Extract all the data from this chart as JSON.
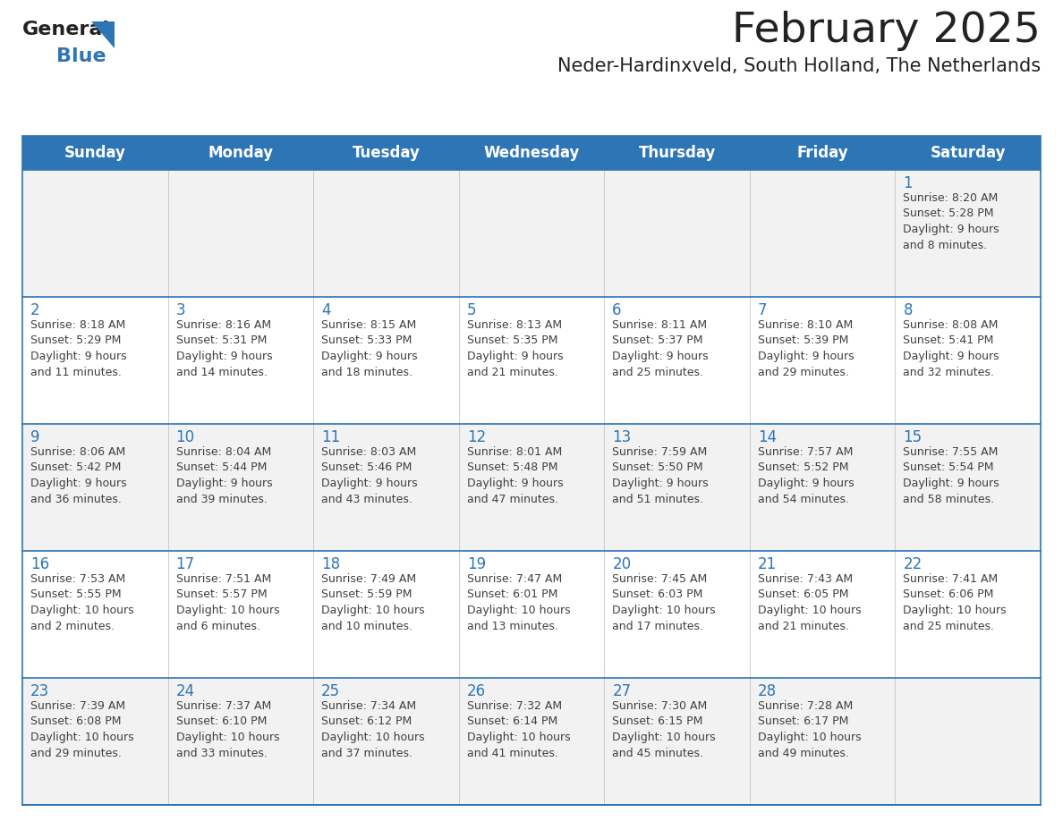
{
  "title": "February 2025",
  "subtitle": "Neder-Hardinxveld, South Holland, The Netherlands",
  "header_color": "#2E75B6",
  "header_text_color": "#FFFFFF",
  "cell_bg_even": "#F2F2F2",
  "cell_bg_odd": "#FFFFFF",
  "cell_border_color": "#2E75B6",
  "day_number_color": "#2E75B6",
  "info_text_color": "#404040",
  "background_color": "#FFFFFF",
  "days_of_week": [
    "Sunday",
    "Monday",
    "Tuesday",
    "Wednesday",
    "Thursday",
    "Friday",
    "Saturday"
  ],
  "weeks": [
    [
      {
        "day": null,
        "info": ""
      },
      {
        "day": null,
        "info": ""
      },
      {
        "day": null,
        "info": ""
      },
      {
        "day": null,
        "info": ""
      },
      {
        "day": null,
        "info": ""
      },
      {
        "day": null,
        "info": ""
      },
      {
        "day": "1",
        "info": "Sunrise: 8:20 AM\nSunset: 5:28 PM\nDaylight: 9 hours\nand 8 minutes."
      }
    ],
    [
      {
        "day": "2",
        "info": "Sunrise: 8:18 AM\nSunset: 5:29 PM\nDaylight: 9 hours\nand 11 minutes."
      },
      {
        "day": "3",
        "info": "Sunrise: 8:16 AM\nSunset: 5:31 PM\nDaylight: 9 hours\nand 14 minutes."
      },
      {
        "day": "4",
        "info": "Sunrise: 8:15 AM\nSunset: 5:33 PM\nDaylight: 9 hours\nand 18 minutes."
      },
      {
        "day": "5",
        "info": "Sunrise: 8:13 AM\nSunset: 5:35 PM\nDaylight: 9 hours\nand 21 minutes."
      },
      {
        "day": "6",
        "info": "Sunrise: 8:11 AM\nSunset: 5:37 PM\nDaylight: 9 hours\nand 25 minutes."
      },
      {
        "day": "7",
        "info": "Sunrise: 8:10 AM\nSunset: 5:39 PM\nDaylight: 9 hours\nand 29 minutes."
      },
      {
        "day": "8",
        "info": "Sunrise: 8:08 AM\nSunset: 5:41 PM\nDaylight: 9 hours\nand 32 minutes."
      }
    ],
    [
      {
        "day": "9",
        "info": "Sunrise: 8:06 AM\nSunset: 5:42 PM\nDaylight: 9 hours\nand 36 minutes."
      },
      {
        "day": "10",
        "info": "Sunrise: 8:04 AM\nSunset: 5:44 PM\nDaylight: 9 hours\nand 39 minutes."
      },
      {
        "day": "11",
        "info": "Sunrise: 8:03 AM\nSunset: 5:46 PM\nDaylight: 9 hours\nand 43 minutes."
      },
      {
        "day": "12",
        "info": "Sunrise: 8:01 AM\nSunset: 5:48 PM\nDaylight: 9 hours\nand 47 minutes."
      },
      {
        "day": "13",
        "info": "Sunrise: 7:59 AM\nSunset: 5:50 PM\nDaylight: 9 hours\nand 51 minutes."
      },
      {
        "day": "14",
        "info": "Sunrise: 7:57 AM\nSunset: 5:52 PM\nDaylight: 9 hours\nand 54 minutes."
      },
      {
        "day": "15",
        "info": "Sunrise: 7:55 AM\nSunset: 5:54 PM\nDaylight: 9 hours\nand 58 minutes."
      }
    ],
    [
      {
        "day": "16",
        "info": "Sunrise: 7:53 AM\nSunset: 5:55 PM\nDaylight: 10 hours\nand 2 minutes."
      },
      {
        "day": "17",
        "info": "Sunrise: 7:51 AM\nSunset: 5:57 PM\nDaylight: 10 hours\nand 6 minutes."
      },
      {
        "day": "18",
        "info": "Sunrise: 7:49 AM\nSunset: 5:59 PM\nDaylight: 10 hours\nand 10 minutes."
      },
      {
        "day": "19",
        "info": "Sunrise: 7:47 AM\nSunset: 6:01 PM\nDaylight: 10 hours\nand 13 minutes."
      },
      {
        "day": "20",
        "info": "Sunrise: 7:45 AM\nSunset: 6:03 PM\nDaylight: 10 hours\nand 17 minutes."
      },
      {
        "day": "21",
        "info": "Sunrise: 7:43 AM\nSunset: 6:05 PM\nDaylight: 10 hours\nand 21 minutes."
      },
      {
        "day": "22",
        "info": "Sunrise: 7:41 AM\nSunset: 6:06 PM\nDaylight: 10 hours\nand 25 minutes."
      }
    ],
    [
      {
        "day": "23",
        "info": "Sunrise: 7:39 AM\nSunset: 6:08 PM\nDaylight: 10 hours\nand 29 minutes."
      },
      {
        "day": "24",
        "info": "Sunrise: 7:37 AM\nSunset: 6:10 PM\nDaylight: 10 hours\nand 33 minutes."
      },
      {
        "day": "25",
        "info": "Sunrise: 7:34 AM\nSunset: 6:12 PM\nDaylight: 10 hours\nand 37 minutes."
      },
      {
        "day": "26",
        "info": "Sunrise: 7:32 AM\nSunset: 6:14 PM\nDaylight: 10 hours\nand 41 minutes."
      },
      {
        "day": "27",
        "info": "Sunrise: 7:30 AM\nSunset: 6:15 PM\nDaylight: 10 hours\nand 45 minutes."
      },
      {
        "day": "28",
        "info": "Sunrise: 7:28 AM\nSunset: 6:17 PM\nDaylight: 10 hours\nand 49 minutes."
      },
      {
        "day": null,
        "info": ""
      }
    ]
  ],
  "logo_general_color": "#222222",
  "logo_blue_color": "#2E75B6",
  "title_fontsize": 34,
  "subtitle_fontsize": 15,
  "header_fontsize": 12,
  "day_number_fontsize": 12,
  "info_fontsize": 9
}
